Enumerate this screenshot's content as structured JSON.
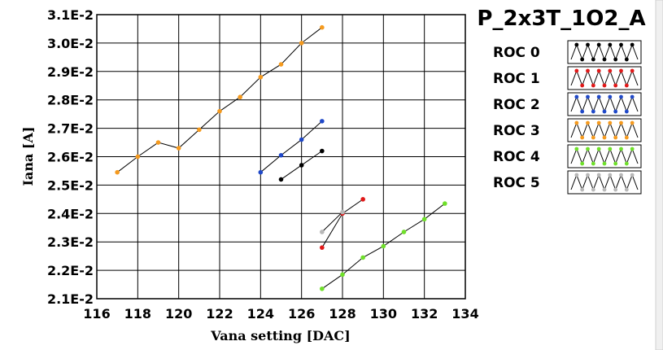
{
  "chart_data": {
    "type": "line",
    "title": "P_2x3T_1O2_A",
    "xlabel": "Vana setting [DAC]",
    "ylabel": "Iana [A]",
    "xlim": [
      116,
      134
    ],
    "ylim": [
      0.021,
      0.031
    ],
    "x_ticks": [
      "116",
      "118",
      "120",
      "122",
      "124",
      "126",
      "128",
      "130",
      "132",
      "134"
    ],
    "y_ticks": [
      "2.1E-2",
      "2.2E-2",
      "2.3E-2",
      "2.4E-2",
      "2.5E-2",
      "2.6E-2",
      "2.7E-2",
      "2.8E-2",
      "2.9E-2",
      "3.0E-2",
      "3.1E-2"
    ],
    "grid": true,
    "legend_position": "right",
    "series": [
      {
        "name": "ROC 0",
        "color": "#000000",
        "x": [
          125,
          126,
          127
        ],
        "y": [
          0.0252,
          0.0257,
          0.0262
        ]
      },
      {
        "name": "ROC 1",
        "color": "#e01818",
        "x": [
          127,
          128,
          129
        ],
        "y": [
          0.0228,
          0.024,
          0.0245
        ]
      },
      {
        "name": "ROC 2",
        "color": "#1f48c8",
        "x": [
          124,
          125,
          126,
          127
        ],
        "y": [
          0.02545,
          0.02605,
          0.0266,
          0.02725
        ]
      },
      {
        "name": "ROC 3",
        "color": "#f59a1e",
        "x": [
          117,
          118,
          119,
          120,
          121,
          122,
          123,
          124,
          125,
          126,
          127
        ],
        "y": [
          0.02545,
          0.026,
          0.0265,
          0.0263,
          0.02695,
          0.0276,
          0.0281,
          0.0288,
          0.02925,
          0.03,
          0.03055
        ]
      },
      {
        "name": "ROC 4",
        "color": "#6fe02a",
        "x": [
          127,
          128,
          129,
          130,
          131,
          132,
          133
        ],
        "y": [
          0.02135,
          0.02185,
          0.02245,
          0.02285,
          0.02335,
          0.0238,
          0.02435
        ]
      },
      {
        "name": "ROC 5",
        "color": "#b8b8b8",
        "x": [
          127,
          128
        ],
        "y": [
          0.02335,
          0.02405
        ]
      }
    ]
  }
}
